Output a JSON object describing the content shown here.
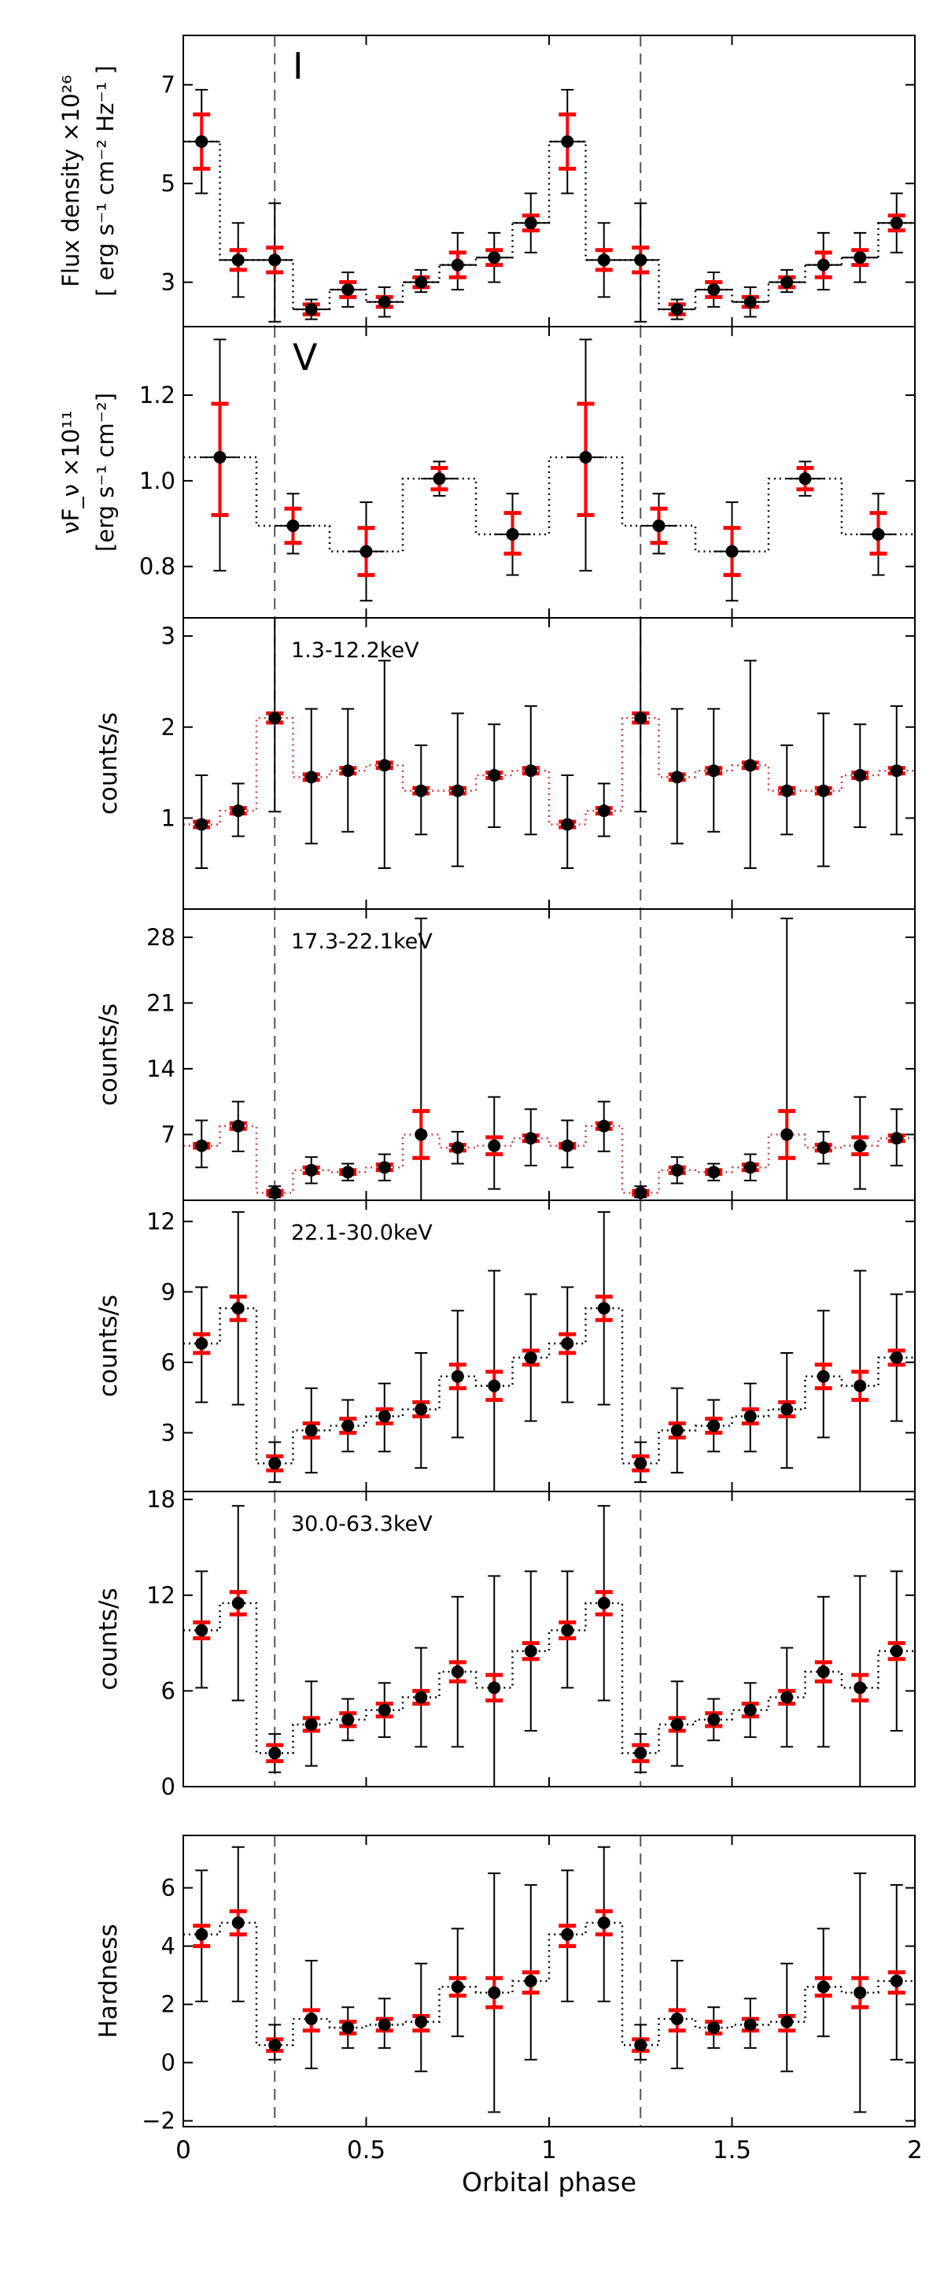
{
  "chart_data": {
    "type": "scatter",
    "figure": {
      "xlabel": "Orbital phase",
      "xlim": [
        0,
        2
      ],
      "xticks": [
        0,
        0.5,
        1,
        1.5,
        2
      ],
      "xtick_labels": [
        "0",
        "0.5",
        "1",
        "1.5",
        "2"
      ],
      "vlines": [
        0.25,
        1.25
      ]
    },
    "colors": {
      "points": "#000000",
      "errorbar_inner": "#ff0000",
      "errorbar_outer": "#000000",
      "step_line": "#000000",
      "step_line_red": "#d04040"
    },
    "panels": [
      {
        "name": "I",
        "panel_label": "I",
        "ylabel_lines": [
          "Flux density ×10²⁶",
          "[ erg s⁻¹ cm⁻² Hz⁻¹ ]"
        ],
        "ylim": [
          2.1,
          8.0
        ],
        "yticks": [
          3,
          5,
          7
        ],
        "ytick_labels": [
          "3",
          "5",
          "7"
        ],
        "step_line_color": "black",
        "points": [
          {
            "x": 0.05,
            "y": 5.85,
            "lo": 4.8,
            "hi": 6.9,
            "rlo": 5.3,
            "rhi": 6.4,
            "xerr": 0.05
          },
          {
            "x": 0.15,
            "y": 3.45,
            "lo": 2.7,
            "hi": 4.2,
            "rlo": 3.25,
            "rhi": 3.65,
            "xerr": 0.05
          },
          {
            "x": 0.25,
            "y": 3.45,
            "lo": 2.2,
            "hi": 4.6,
            "rlo": 3.2,
            "rhi": 3.7,
            "xerr": 0.05
          },
          {
            "x": 0.35,
            "y": 2.45,
            "lo": 2.25,
            "hi": 2.65,
            "rlo": 2.35,
            "rhi": 2.55,
            "xerr": 0.05
          },
          {
            "x": 0.45,
            "y": 2.85,
            "lo": 2.5,
            "hi": 3.2,
            "rlo": 2.7,
            "rhi": 3.0,
            "xerr": 0.05
          },
          {
            "x": 0.55,
            "y": 2.6,
            "lo": 2.3,
            "hi": 2.9,
            "rlo": 2.5,
            "rhi": 2.7,
            "xerr": 0.05
          },
          {
            "x": 0.65,
            "y": 3.0,
            "lo": 2.8,
            "hi": 3.25,
            "rlo": 2.9,
            "rhi": 3.1,
            "xerr": 0.05
          },
          {
            "x": 0.75,
            "y": 3.35,
            "lo": 2.85,
            "hi": 4.0,
            "rlo": 3.1,
            "rhi": 3.6,
            "xerr": 0.05
          },
          {
            "x": 0.85,
            "y": 3.5,
            "lo": 3.0,
            "hi": 4.0,
            "rlo": 3.35,
            "rhi": 3.65,
            "xerr": 0.05
          },
          {
            "x": 0.95,
            "y": 4.2,
            "lo": 3.6,
            "hi": 4.8,
            "rlo": 4.05,
            "rhi": 4.35,
            "xerr": 0.05
          }
        ]
      },
      {
        "name": "V",
        "panel_label": "V",
        "ylabel_lines": [
          "νF_ν ×10¹¹",
          "[erg s⁻¹ cm⁻²]"
        ],
        "ylim": [
          0.68,
          1.36
        ],
        "yticks": [
          0.8,
          1.0,
          1.2
        ],
        "ytick_labels": [
          "0.8",
          "1.0",
          "1.2"
        ],
        "step_line_color": "black",
        "points": [
          {
            "x": 0.1,
            "y": 1.055,
            "lo": 0.79,
            "hi": 1.33,
            "rlo": 0.92,
            "rhi": 1.18,
            "xerr": 0.05
          },
          {
            "x": 0.3,
            "y": 0.895,
            "lo": 0.83,
            "hi": 0.97,
            "rlo": 0.855,
            "rhi": 0.935,
            "xerr": 0.05
          },
          {
            "x": 0.5,
            "y": 0.835,
            "lo": 0.72,
            "hi": 0.95,
            "rlo": 0.78,
            "rhi": 0.89,
            "xerr": 0.05
          },
          {
            "x": 0.7,
            "y": 1.005,
            "lo": 0.965,
            "hi": 1.045,
            "rlo": 0.98,
            "rhi": 1.03,
            "xerr": 0.05
          },
          {
            "x": 0.9,
            "y": 0.875,
            "lo": 0.78,
            "hi": 0.97,
            "rlo": 0.83,
            "rhi": 0.925,
            "xerr": 0.05
          }
        ]
      },
      {
        "name": "band-1",
        "panel_label": "1.3-12.2keV",
        "ylabel_lines": [
          "counts/s"
        ],
        "ylim": [
          0,
          3.2
        ],
        "yticks": [
          1,
          2,
          3
        ],
        "ytick_labels": [
          "1",
          "2",
          "3"
        ],
        "step_line_color": "red",
        "points": [
          {
            "x": 0.05,
            "y": 0.93,
            "lo": 0.45,
            "hi": 1.47,
            "rlo": 0.9,
            "rhi": 0.96,
            "xerr": 0
          },
          {
            "x": 0.15,
            "y": 1.08,
            "lo": 0.8,
            "hi": 1.38,
            "rlo": 1.05,
            "rhi": 1.11,
            "xerr": 0
          },
          {
            "x": 0.25,
            "y": 2.1,
            "lo": 1.07,
            "hi": 3.2,
            "rlo": 2.05,
            "rhi": 2.15,
            "xerr": 0
          },
          {
            "x": 0.35,
            "y": 1.45,
            "lo": 0.72,
            "hi": 2.2,
            "rlo": 1.42,
            "rhi": 1.48,
            "xerr": 0
          },
          {
            "x": 0.45,
            "y": 1.52,
            "lo": 0.85,
            "hi": 2.2,
            "rlo": 1.49,
            "rhi": 1.55,
            "xerr": 0
          },
          {
            "x": 0.55,
            "y": 1.58,
            "lo": 0.45,
            "hi": 2.73,
            "rlo": 1.55,
            "rhi": 1.61,
            "xerr": 0
          },
          {
            "x": 0.65,
            "y": 1.3,
            "lo": 0.82,
            "hi": 1.8,
            "rlo": 1.27,
            "rhi": 1.33,
            "xerr": 0
          },
          {
            "x": 0.75,
            "y": 1.3,
            "lo": 0.47,
            "hi": 2.15,
            "rlo": 1.27,
            "rhi": 1.33,
            "xerr": 0
          },
          {
            "x": 0.85,
            "y": 1.47,
            "lo": 0.9,
            "hi": 2.03,
            "rlo": 1.44,
            "rhi": 1.5,
            "xerr": 0
          },
          {
            "x": 0.95,
            "y": 1.52,
            "lo": 0.82,
            "hi": 2.23,
            "rlo": 1.49,
            "rhi": 1.55,
            "xerr": 0
          }
        ]
      },
      {
        "name": "band-2",
        "panel_label": "17.3-22.1keV",
        "ylabel_lines": [
          "counts/s"
        ],
        "ylim": [
          0,
          31
        ],
        "yticks": [
          7,
          14,
          21,
          28
        ],
        "ytick_labels": [
          "7",
          "14",
          "21",
          "28"
        ],
        "step_line_color": "red",
        "points": [
          {
            "x": 0.05,
            "y": 5.8,
            "lo": 3.5,
            "hi": 8.5,
            "rlo": 5.6,
            "rhi": 6.0,
            "xerr": 0
          },
          {
            "x": 0.15,
            "y": 7.9,
            "lo": 5.2,
            "hi": 10.5,
            "rlo": 7.6,
            "rhi": 8.2,
            "xerr": 0
          },
          {
            "x": 0.25,
            "y": 0.8,
            "lo": 0.3,
            "hi": 1.5,
            "rlo": 0.6,
            "rhi": 1.0,
            "xerr": 0
          },
          {
            "x": 0.35,
            "y": 3.2,
            "lo": 1.8,
            "hi": 4.6,
            "rlo": 2.9,
            "rhi": 3.5,
            "xerr": 0
          },
          {
            "x": 0.45,
            "y": 3.0,
            "lo": 2.1,
            "hi": 3.9,
            "rlo": 2.8,
            "rhi": 3.2,
            "xerr": 0
          },
          {
            "x": 0.55,
            "y": 3.5,
            "lo": 2.1,
            "hi": 4.9,
            "rlo": 3.2,
            "rhi": 3.8,
            "xerr": 0
          },
          {
            "x": 0.65,
            "y": 7.0,
            "lo": 0,
            "hi": 30,
            "rlo": 4.5,
            "rhi": 9.5,
            "xerr": 0
          },
          {
            "x": 0.75,
            "y": 5.6,
            "lo": 3.9,
            "hi": 7.3,
            "rlo": 5.3,
            "rhi": 5.9,
            "xerr": 0
          },
          {
            "x": 0.85,
            "y": 5.8,
            "lo": 1.2,
            "hi": 11.0,
            "rlo": 4.9,
            "rhi": 6.7,
            "xerr": 0
          },
          {
            "x": 0.95,
            "y": 6.6,
            "lo": 3.7,
            "hi": 9.7,
            "rlo": 6.3,
            "rhi": 6.9,
            "xerr": 0
          }
        ]
      },
      {
        "name": "band-3",
        "panel_label": "22.1-30.0keV",
        "ylabel_lines": [
          "counts/s"
        ],
        "ylim": [
          0.5,
          12.9
        ],
        "yticks": [
          3,
          6,
          9,
          12
        ],
        "ytick_labels": [
          "3",
          "6",
          "9",
          "12"
        ],
        "step_line_color": "black",
        "points": [
          {
            "x": 0.05,
            "y": 6.8,
            "lo": 4.3,
            "hi": 9.2,
            "rlo": 6.4,
            "rhi": 7.2,
            "xerr": 0
          },
          {
            "x": 0.15,
            "y": 8.3,
            "lo": 4.2,
            "hi": 12.4,
            "rlo": 7.8,
            "rhi": 8.8,
            "xerr": 0
          },
          {
            "x": 0.25,
            "y": 1.7,
            "lo": 0.9,
            "hi": 2.6,
            "rlo": 1.4,
            "rhi": 2.0,
            "xerr": 0
          },
          {
            "x": 0.35,
            "y": 3.1,
            "lo": 1.3,
            "hi": 4.9,
            "rlo": 2.8,
            "rhi": 3.4,
            "xerr": 0
          },
          {
            "x": 0.45,
            "y": 3.3,
            "lo": 2.2,
            "hi": 4.4,
            "rlo": 3.0,
            "rhi": 3.6,
            "xerr": 0
          },
          {
            "x": 0.55,
            "y": 3.7,
            "lo": 2.2,
            "hi": 5.1,
            "rlo": 3.4,
            "rhi": 4.0,
            "xerr": 0
          },
          {
            "x": 0.65,
            "y": 4.0,
            "lo": 1.5,
            "hi": 6.4,
            "rlo": 3.7,
            "rhi": 4.3,
            "xerr": 0
          },
          {
            "x": 0.75,
            "y": 5.4,
            "lo": 2.8,
            "hi": 8.2,
            "rlo": 4.9,
            "rhi": 5.9,
            "xerr": 0
          },
          {
            "x": 0.85,
            "y": 5.0,
            "lo": 0.5,
            "hi": 9.9,
            "rlo": 4.4,
            "rhi": 5.6,
            "xerr": 0
          },
          {
            "x": 0.95,
            "y": 6.2,
            "lo": 3.5,
            "hi": 8.9,
            "rlo": 5.9,
            "rhi": 6.5,
            "xerr": 0
          }
        ]
      },
      {
        "name": "band-4",
        "panel_label": "30.0-63.3keV",
        "ylabel_lines": [
          "counts/s"
        ],
        "ylim": [
          0,
          18.5
        ],
        "yticks": [
          0,
          6,
          12,
          18
        ],
        "ytick_labels": [
          "0",
          "6",
          "12",
          "18"
        ],
        "step_line_color": "black",
        "points": [
          {
            "x": 0.05,
            "y": 9.8,
            "lo": 6.2,
            "hi": 13.5,
            "rlo": 9.3,
            "rhi": 10.3,
            "xerr": 0
          },
          {
            "x": 0.15,
            "y": 11.5,
            "lo": 5.4,
            "hi": 17.6,
            "rlo": 10.8,
            "rhi": 12.2,
            "xerr": 0
          },
          {
            "x": 0.25,
            "y": 2.1,
            "lo": 0.9,
            "hi": 3.3,
            "rlo": 1.6,
            "rhi": 2.6,
            "xerr": 0
          },
          {
            "x": 0.35,
            "y": 3.9,
            "lo": 1.3,
            "hi": 6.6,
            "rlo": 3.5,
            "rhi": 4.3,
            "xerr": 0
          },
          {
            "x": 0.45,
            "y": 4.2,
            "lo": 2.9,
            "hi": 5.5,
            "rlo": 3.8,
            "rhi": 4.6,
            "xerr": 0
          },
          {
            "x": 0.55,
            "y": 4.8,
            "lo": 3.1,
            "hi": 6.5,
            "rlo": 4.4,
            "rhi": 5.2,
            "xerr": 0
          },
          {
            "x": 0.65,
            "y": 5.6,
            "lo": 2.5,
            "hi": 8.7,
            "rlo": 5.2,
            "rhi": 6.0,
            "xerr": 0
          },
          {
            "x": 0.75,
            "y": 7.2,
            "lo": 2.5,
            "hi": 11.9,
            "rlo": 6.6,
            "rhi": 7.8,
            "xerr": 0
          },
          {
            "x": 0.85,
            "y": 6.2,
            "lo": 0,
            "hi": 13.2,
            "rlo": 5.4,
            "rhi": 7.0,
            "xerr": 0
          },
          {
            "x": 0.95,
            "y": 8.5,
            "lo": 3.5,
            "hi": 13.5,
            "rlo": 8.0,
            "rhi": 9.0,
            "xerr": 0
          }
        ]
      },
      {
        "name": "hardness",
        "panel_label": "",
        "ylabel_lines": [
          "Hardness"
        ],
        "ylim": [
          -2.2,
          7.8
        ],
        "yticks": [
          -2,
          0,
          2,
          4,
          6
        ],
        "ytick_labels": [
          "−2",
          "0",
          "2",
          "4",
          "6"
        ],
        "step_line_color": "black",
        "points": [
          {
            "x": 0.05,
            "y": 4.4,
            "lo": 2.1,
            "hi": 6.6,
            "rlo": 4.0,
            "rhi": 4.7,
            "xerr": 0
          },
          {
            "x": 0.15,
            "y": 4.8,
            "lo": 2.1,
            "hi": 7.4,
            "rlo": 4.4,
            "rhi": 5.2,
            "xerr": 0
          },
          {
            "x": 0.25,
            "y": 0.6,
            "lo": 0.1,
            "hi": 1.3,
            "rlo": 0.4,
            "rhi": 0.8,
            "xerr": 0
          },
          {
            "x": 0.35,
            "y": 1.5,
            "lo": -0.2,
            "hi": 3.5,
            "rlo": 1.1,
            "rhi": 1.8,
            "xerr": 0
          },
          {
            "x": 0.45,
            "y": 1.2,
            "lo": 0.5,
            "hi": 1.9,
            "rlo": 1.0,
            "rhi": 1.4,
            "xerr": 0
          },
          {
            "x": 0.55,
            "y": 1.3,
            "lo": 0.5,
            "hi": 2.2,
            "rlo": 1.1,
            "rhi": 1.5,
            "xerr": 0
          },
          {
            "x": 0.65,
            "y": 1.4,
            "lo": -0.3,
            "hi": 3.4,
            "rlo": 1.1,
            "rhi": 1.6,
            "xerr": 0
          },
          {
            "x": 0.75,
            "y": 2.6,
            "lo": 0.9,
            "hi": 4.6,
            "rlo": 2.3,
            "rhi": 2.9,
            "xerr": 0
          },
          {
            "x": 0.85,
            "y": 2.4,
            "lo": -1.7,
            "hi": 6.5,
            "rlo": 1.9,
            "rhi": 2.9,
            "xerr": 0
          },
          {
            "x": 0.95,
            "y": 2.8,
            "lo": 0.1,
            "hi": 6.1,
            "rlo": 2.4,
            "rhi": 3.1,
            "xerr": 0
          }
        ]
      }
    ]
  }
}
